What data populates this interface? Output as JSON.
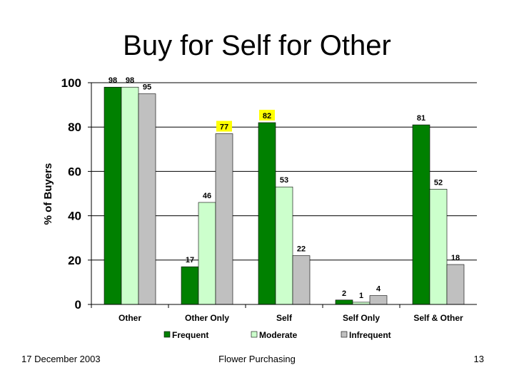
{
  "slide": {
    "title": "Buy for Self for Other",
    "footer_date": "17 December 2003",
    "footer_center": "Flower Purchasing",
    "page_number": "13"
  },
  "chart_data": {
    "type": "bar",
    "title": "",
    "xlabel": "",
    "ylabel": "% of Buyers",
    "ylim": [
      0,
      100
    ],
    "yticks": [
      0,
      20,
      40,
      60,
      80,
      100
    ],
    "grid": true,
    "legend_position": "bottom",
    "categories": [
      "Other",
      "Other Only",
      "Self",
      "Self Only",
      "Self & Other"
    ],
    "series": [
      {
        "name": "Frequent",
        "color": "#008000",
        "values": [
          98,
          17,
          82,
          2,
          81
        ]
      },
      {
        "name": "Moderate",
        "color": "#ccffcc",
        "values": [
          98,
          46,
          53,
          1,
          52
        ]
      },
      {
        "name": "Infrequent",
        "color": "#c0c0c0",
        "values": [
          95,
          77,
          22,
          4,
          18
        ]
      }
    ],
    "highlighted_labels": [
      {
        "category": "Other Only",
        "series": "Infrequent",
        "color": "#ffff00"
      },
      {
        "category": "Self",
        "series": "Frequent",
        "color": "#ffff00"
      }
    ]
  }
}
